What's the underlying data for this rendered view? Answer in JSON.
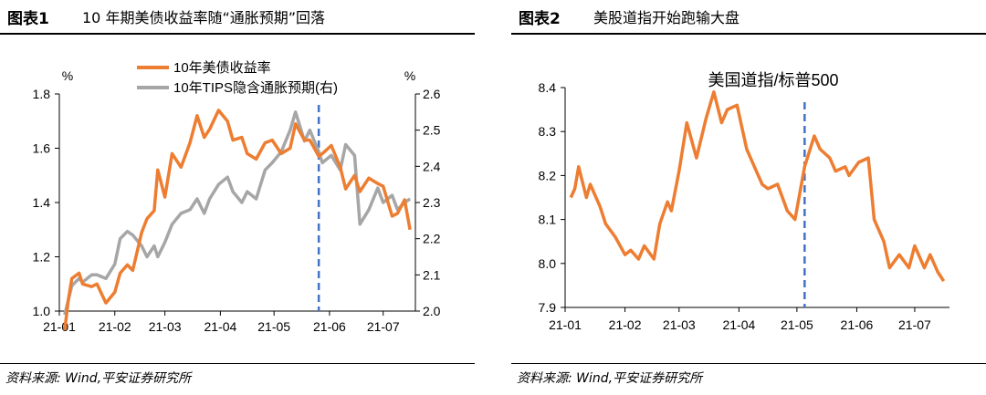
{
  "colors": {
    "orange": "#ed7d31",
    "gray": "#a6a6a6",
    "dash": "#4472c4",
    "axis": "#000000"
  },
  "left": {
    "fig_label": "图表1",
    "title": "10 年期美债收益率随“通胀预期”回落",
    "source": "资料来源: Wind,平安证券研究所",
    "chart_data": {
      "type": "line",
      "title": "",
      "ylabel_left": "%",
      "ylabel_right": "%",
      "x_ticks": [
        "21-01",
        "21-02",
        "21-03",
        "21-04",
        "21-05",
        "21-06",
        "21-07"
      ],
      "ylim_left": [
        1.0,
        1.8
      ],
      "yticks_left": [
        "1.0",
        "1.2",
        "1.4",
        "1.6",
        "1.8"
      ],
      "ylim_right": [
        2.0,
        2.6
      ],
      "yticks_right": [
        "2.0",
        "2.1",
        "2.2",
        "2.3",
        "2.4",
        "2.5",
        "2.6"
      ],
      "legend_position": "top",
      "vline": "21-05 (late May)",
      "series": [
        {
          "name": "10年美债收益率",
          "axis": "left",
          "x": [
            "2021-01-04",
            "2021-01-06",
            "2021-01-08",
            "2021-01-12",
            "2021-01-14",
            "2021-01-19",
            "2021-01-22",
            "2021-01-27",
            "2021-02-01",
            "2021-02-04",
            "2021-02-08",
            "2021-02-11",
            "2021-02-16",
            "2021-02-19",
            "2021-02-23",
            "2021-02-25",
            "2021-03-01",
            "2021-03-05",
            "2021-03-10",
            "2021-03-15",
            "2021-03-19",
            "2021-03-23",
            "2021-03-26",
            "2021-03-31",
            "2021-04-05",
            "2021-04-08",
            "2021-04-13",
            "2021-04-16",
            "2021-04-21",
            "2021-04-26",
            "2021-04-30",
            "2021-05-05",
            "2021-05-10",
            "2021-05-13",
            "2021-05-18",
            "2021-05-21",
            "2021-05-26",
            "2021-05-28",
            "2021-06-02",
            "2021-06-07",
            "2021-06-10",
            "2021-06-15",
            "2021-06-18",
            "2021-06-23",
            "2021-06-28",
            "2021-07-01",
            "2021-07-06",
            "2021-07-09",
            "2021-07-13",
            "2021-07-16"
          ],
          "values": [
            0.93,
            1.04,
            1.12,
            1.14,
            1.1,
            1.09,
            1.1,
            1.03,
            1.07,
            1.14,
            1.17,
            1.15,
            1.29,
            1.34,
            1.37,
            1.52,
            1.42,
            1.58,
            1.53,
            1.62,
            1.72,
            1.64,
            1.67,
            1.74,
            1.7,
            1.63,
            1.64,
            1.58,
            1.56,
            1.62,
            1.63,
            1.58,
            1.6,
            1.69,
            1.63,
            1.63,
            1.57,
            1.58,
            1.61,
            1.53,
            1.45,
            1.5,
            1.44,
            1.49,
            1.47,
            1.46,
            1.35,
            1.36,
            1.41,
            1.3
          ]
        },
        {
          "name": "10年TIPS隐含通胀预期(右)",
          "axis": "right",
          "x": [
            "2021-01-04",
            "2021-01-06",
            "2021-01-08",
            "2021-01-12",
            "2021-01-14",
            "2021-01-19",
            "2021-01-22",
            "2021-01-27",
            "2021-02-01",
            "2021-02-04",
            "2021-02-08",
            "2021-02-11",
            "2021-02-16",
            "2021-02-19",
            "2021-02-23",
            "2021-02-25",
            "2021-03-01",
            "2021-03-05",
            "2021-03-10",
            "2021-03-15",
            "2021-03-19",
            "2021-03-23",
            "2021-03-26",
            "2021-03-31",
            "2021-04-05",
            "2021-04-08",
            "2021-04-13",
            "2021-04-16",
            "2021-04-21",
            "2021-04-26",
            "2021-04-30",
            "2021-05-05",
            "2021-05-10",
            "2021-05-13",
            "2021-05-18",
            "2021-05-21",
            "2021-05-26",
            "2021-05-28",
            "2021-06-02",
            "2021-06-07",
            "2021-06-10",
            "2021-06-15",
            "2021-06-18",
            "2021-06-23",
            "2021-06-28",
            "2021-07-01",
            "2021-07-06",
            "2021-07-09",
            "2021-07-13",
            "2021-07-16"
          ],
          "values": [
            1.99,
            2.03,
            2.07,
            2.09,
            2.08,
            2.1,
            2.1,
            2.09,
            2.13,
            2.2,
            2.22,
            2.21,
            2.18,
            2.15,
            2.18,
            2.15,
            2.19,
            2.24,
            2.27,
            2.28,
            2.31,
            2.27,
            2.31,
            2.35,
            2.37,
            2.33,
            2.3,
            2.33,
            2.31,
            2.39,
            2.41,
            2.44,
            2.5,
            2.55,
            2.47,
            2.5,
            2.44,
            2.41,
            2.43,
            2.39,
            2.46,
            2.43,
            2.24,
            2.28,
            2.34,
            2.3,
            2.32,
            2.28,
            2.3,
            2.31
          ]
        }
      ]
    }
  },
  "right": {
    "fig_label": "图表2",
    "title": "美股道指开始跑输大盘",
    "source": "资料来源: Wind,平安证券研究所",
    "chart_data": {
      "type": "line",
      "title": "美国道指/标普500",
      "x_ticks": [
        "21-01",
        "21-02",
        "21-03",
        "21-04",
        "21-05",
        "21-06",
        "21-07"
      ],
      "ylim": [
        7.9,
        8.4
      ],
      "yticks": [
        "7.9",
        "8.0",
        "8.1",
        "8.2",
        "8.3",
        "8.4"
      ],
      "vline": "21-05 (early May)",
      "series": [
        {
          "name": "美国道指/标普500",
          "x": [
            "2021-01-04",
            "2021-01-06",
            "2021-01-08",
            "2021-01-12",
            "2021-01-14",
            "2021-01-19",
            "2021-01-22",
            "2021-01-27",
            "2021-02-01",
            "2021-02-04",
            "2021-02-08",
            "2021-02-11",
            "2021-02-16",
            "2021-02-19",
            "2021-02-23",
            "2021-02-25",
            "2021-03-01",
            "2021-03-05",
            "2021-03-10",
            "2021-03-15",
            "2021-03-19",
            "2021-03-23",
            "2021-03-26",
            "2021-03-31",
            "2021-04-05",
            "2021-04-08",
            "2021-04-13",
            "2021-04-16",
            "2021-04-21",
            "2021-04-26",
            "2021-04-30",
            "2021-05-05",
            "2021-05-10",
            "2021-05-13",
            "2021-05-18",
            "2021-05-21",
            "2021-05-26",
            "2021-05-28",
            "2021-06-02",
            "2021-06-07",
            "2021-06-10",
            "2021-06-15",
            "2021-06-18",
            "2021-06-23",
            "2021-06-28",
            "2021-07-01",
            "2021-07-06",
            "2021-07-09",
            "2021-07-13",
            "2021-07-16"
          ],
          "values": [
            8.15,
            8.17,
            8.22,
            8.15,
            8.18,
            8.13,
            8.09,
            8.06,
            8.02,
            8.03,
            8.01,
            8.04,
            8.01,
            8.09,
            8.14,
            8.12,
            8.21,
            8.32,
            8.24,
            8.33,
            8.39,
            8.32,
            8.35,
            8.36,
            8.26,
            8.23,
            8.18,
            8.17,
            8.18,
            8.12,
            8.1,
            8.22,
            8.29,
            8.26,
            8.24,
            8.21,
            8.22,
            8.2,
            8.23,
            8.24,
            8.1,
            8.05,
            7.99,
            8.02,
            7.99,
            8.04,
            7.99,
            8.02,
            7.98,
            7.96
          ]
        }
      ]
    }
  }
}
